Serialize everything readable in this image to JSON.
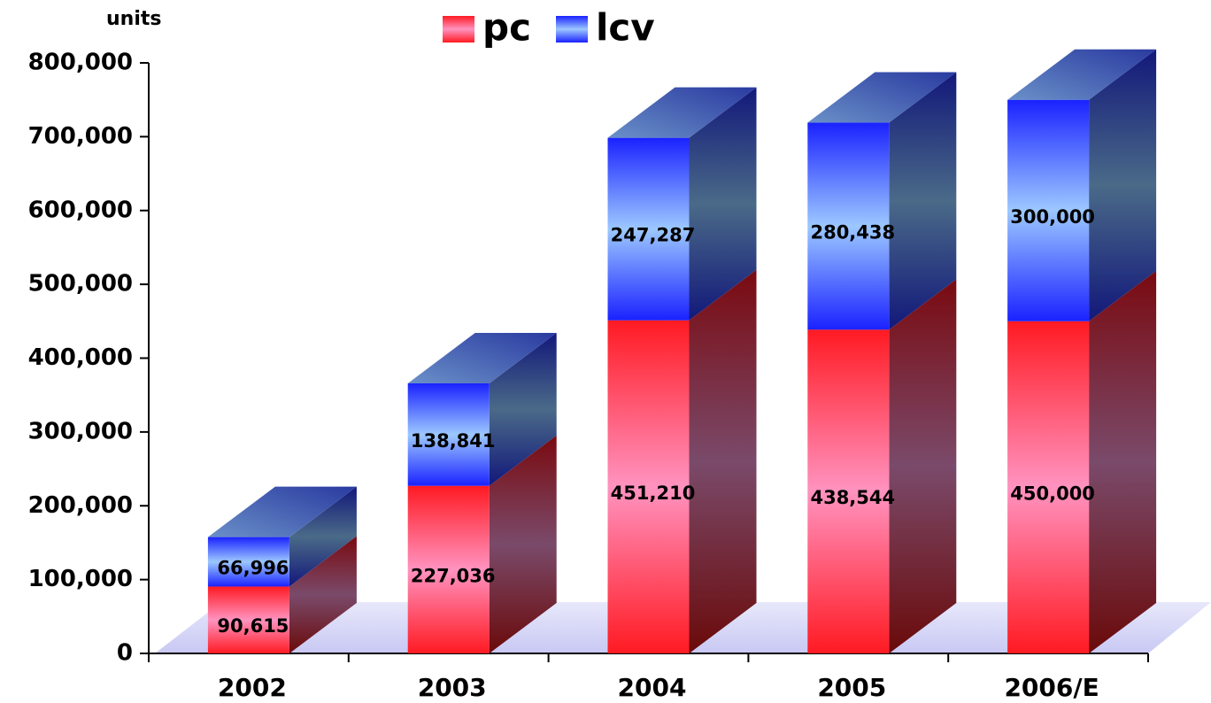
{
  "chart_data": {
    "type": "bar3d_stacked",
    "y_axis_label": "units",
    "categories": [
      "2002",
      "2003",
      "2004",
      "2005",
      "2006/E"
    ],
    "series": [
      {
        "name": "pc",
        "color": "#ff1a2a",
        "values": [
          90615,
          227036,
          451210,
          438544,
          450000
        ],
        "value_labels": [
          "90,615",
          "227,036",
          "451,210",
          "438,544",
          "450,000"
        ]
      },
      {
        "name": "lcv",
        "color": "#1a2aff",
        "values": [
          66996,
          138841,
          247287,
          280438,
          300000
        ],
        "value_labels": [
          "66,996",
          "138,841",
          "247,287",
          "280,438",
          "300,000"
        ]
      }
    ],
    "ylim": [
      0,
      800000
    ],
    "yticks": [
      0,
      {
        "value": 100000,
        "label": "100,000"
      },
      {
        "value": 200000,
        "label": "200,000"
      },
      {
        "value": 300000,
        "label": "300,000"
      },
      {
        "value": 400000,
        "label": "400,000"
      },
      {
        "value": 500000,
        "label": "500,000"
      },
      {
        "value": 600000,
        "label": "600,000"
      },
      {
        "value": 700000,
        "label": "700,000"
      },
      {
        "value": 800000,
        "label": "800,000"
      }
    ],
    "legend": "top"
  }
}
